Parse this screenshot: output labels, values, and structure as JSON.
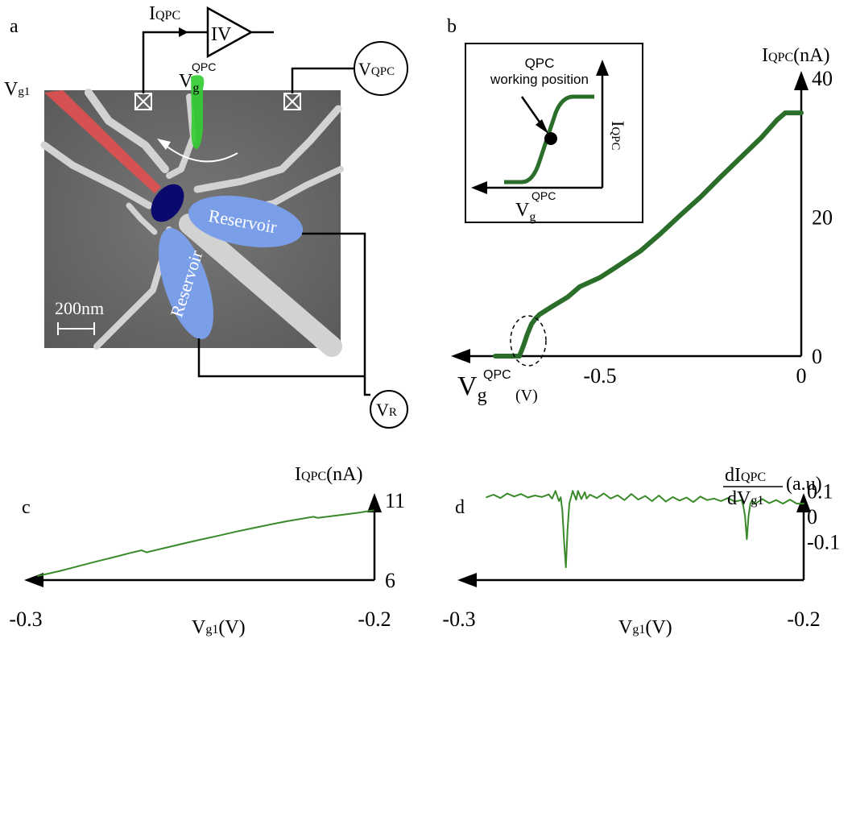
{
  "panels": {
    "a": {
      "label": "a",
      "current_label": "I",
      "current_sub": "QPC",
      "amp_label": "IV",
      "vg_label": "V",
      "vg_sub": "g",
      "vg_sup": "QPC",
      "vqpc_label": "V",
      "vqpc_sub": "QPC",
      "vg1_label": "V",
      "vg1_sub": "g1",
      "reservoir_1": "Reservoir",
      "reservoir_2": "Reservoir",
      "scale_bar": "200nm",
      "vr_label": "V",
      "vr_sub": "R",
      "colors": {
        "gate_g1": "#e05050",
        "gate_qpc": "#33cc33",
        "dot": "#0a0a6e",
        "reservoir": "#7a9ee8",
        "substrate": "#6e6e6e"
      }
    },
    "b": {
      "label": "b",
      "inset_line1": "QPC",
      "inset_line2": "working position",
      "inset_ylabel": "I",
      "inset_ysub": "QPC",
      "inset_xlabel": "V",
      "inset_xsub": "g",
      "inset_xsup": "QPC"
    },
    "c": {
      "label": "c"
    },
    "d": {
      "label": "d"
    }
  },
  "chart_data": [
    {
      "type": "line",
      "panel": "b",
      "ylabel": "I",
      "ylabel_sub": "QPC",
      "ylabel_unit": "(nA)",
      "xlabel": "V",
      "xlabel_sub": "g",
      "xlabel_sup": "QPC",
      "xlabel_unit": "(V)",
      "xlim": [
        -0.8,
        0
      ],
      "ylim": [
        0,
        40
      ],
      "xticks": [
        {
          "v": -0.5,
          "t": "-0.5"
        },
        {
          "v": 0,
          "t": "0"
        }
      ],
      "yticks": [
        {
          "v": 0,
          "t": "0"
        },
        {
          "v": 20,
          "t": "20"
        },
        {
          "v": 40,
          "t": "40"
        }
      ],
      "color": "#2a6e2a",
      "x": [
        -0.76,
        -0.7,
        -0.69,
        -0.68,
        -0.67,
        -0.66,
        -0.65,
        -0.62,
        -0.58,
        -0.55,
        -0.5,
        -0.46,
        -0.4,
        -0.35,
        -0.3,
        -0.25,
        -0.2,
        -0.15,
        -0.1,
        -0.06,
        -0.04,
        -0.02,
        0
      ],
      "y": [
        0,
        0,
        1.5,
        3.2,
        4.6,
        5.4,
        6.0,
        7.1,
        8.5,
        10.0,
        11.3,
        12.8,
        15.1,
        17.6,
        20.3,
        22.9,
        25.8,
        28.6,
        31.4,
        34.0,
        35.0,
        35.0,
        35.0
      ],
      "annotation": "dashed ellipse marks the QPC working position near the first step"
    },
    {
      "type": "line",
      "panel": "c",
      "ylabel": "I",
      "ylabel_sub": "QPC",
      "ylabel_unit": "(nA)",
      "xlabel": "V",
      "xlabel_sub": "g1",
      "xlabel_unit": "(V)",
      "xlim": [
        -0.3,
        -0.2
      ],
      "ylim": [
        6,
        11
      ],
      "xticks": [
        {
          "v": -0.3,
          "t": "-0.3"
        },
        {
          "v": -0.2,
          "t": "-0.2"
        }
      ],
      "yticks": [
        {
          "v": 6,
          "t": "6"
        },
        {
          "v": 11,
          "t": "11"
        }
      ],
      "color": "#3a8a2a",
      "x": [
        -0.2965,
        -0.29,
        -0.285,
        -0.28,
        -0.275,
        -0.27,
        -0.2668,
        -0.2653,
        -0.265,
        -0.26,
        -0.255,
        -0.25,
        -0.245,
        -0.24,
        -0.235,
        -0.23,
        -0.225,
        -0.2175,
        -0.2164,
        -0.2162,
        -0.21,
        -0.205,
        -0.2003
      ],
      "y": [
        6.26,
        6.58,
        6.87,
        7.15,
        7.42,
        7.7,
        7.87,
        7.73,
        7.76,
        8.02,
        8.28,
        8.53,
        8.77,
        9.02,
        9.25,
        9.48,
        9.69,
        9.97,
        9.91,
        9.9,
        10.07,
        10.21,
        10.37
      ]
    },
    {
      "type": "line",
      "panel": "d",
      "ylabel": "dI",
      "ylabel_sub": "QPC",
      "ylabel_den": "dV",
      "ylabel_den_sub": "g1",
      "ylabel_unit": "(a.u)",
      "xlabel": "V",
      "xlabel_sub": "g1",
      "xlabel_unit": "(V)",
      "xlim": [
        -0.3,
        -0.2
      ],
      "ylim": [
        -0.25,
        0.18
      ],
      "xticks": [
        {
          "v": -0.3,
          "t": "-0.3"
        },
        {
          "v": -0.2,
          "t": "-0.2"
        }
      ],
      "yticks": [
        {
          "v": 0.1,
          "t": "0.1"
        },
        {
          "v": 0,
          "t": "0"
        },
        {
          "v": -0.1,
          "t": "-0.1"
        }
      ],
      "color": "#3a8a2a",
      "x": [
        -0.292,
        -0.29,
        -0.288,
        -0.286,
        -0.284,
        -0.282,
        -0.28,
        -0.278,
        -0.276,
        -0.274,
        -0.273,
        -0.272,
        -0.271,
        -0.2705,
        -0.27,
        -0.2695,
        -0.269,
        -0.2685,
        -0.268,
        -0.267,
        -0.266,
        -0.2655,
        -0.2645,
        -0.2635,
        -0.263,
        -0.262,
        -0.26,
        -0.258,
        -0.256,
        -0.254,
        -0.252,
        -0.25,
        -0.248,
        -0.246,
        -0.244,
        -0.242,
        -0.24,
        -0.238,
        -0.236,
        -0.234,
        -0.232,
        -0.23,
        -0.228,
        -0.226,
        -0.224,
        -0.222,
        -0.22,
        -0.218,
        -0.2175,
        -0.217,
        -0.2165,
        -0.216,
        -0.2155,
        -0.215,
        -0.214,
        -0.212,
        -0.21,
        -0.208,
        -0.206,
        -0.204,
        -0.202,
        -0.2
      ],
      "y": [
        0.075,
        0.085,
        0.072,
        0.09,
        0.078,
        0.088,
        0.074,
        0.082,
        0.076,
        0.086,
        0.07,
        0.1,
        0.06,
        0.075,
        0.02,
        -0.1,
        -0.2,
        -0.05,
        0.05,
        0.1,
        0.065,
        0.1,
        0.068,
        0.095,
        0.07,
        0.085,
        0.072,
        0.09,
        0.07,
        0.083,
        0.064,
        0.088,
        0.066,
        0.08,
        0.06,
        0.082,
        0.058,
        0.076,
        0.062,
        0.074,
        0.056,
        0.078,
        0.064,
        0.07,
        0.06,
        0.072,
        0.058,
        0.064,
        0.04,
        0.0,
        -0.09,
        0.0,
        0.048,
        0.062,
        0.05,
        0.068,
        0.052,
        0.064,
        0.05,
        0.066,
        0.05,
        0.05
      ]
    }
  ]
}
